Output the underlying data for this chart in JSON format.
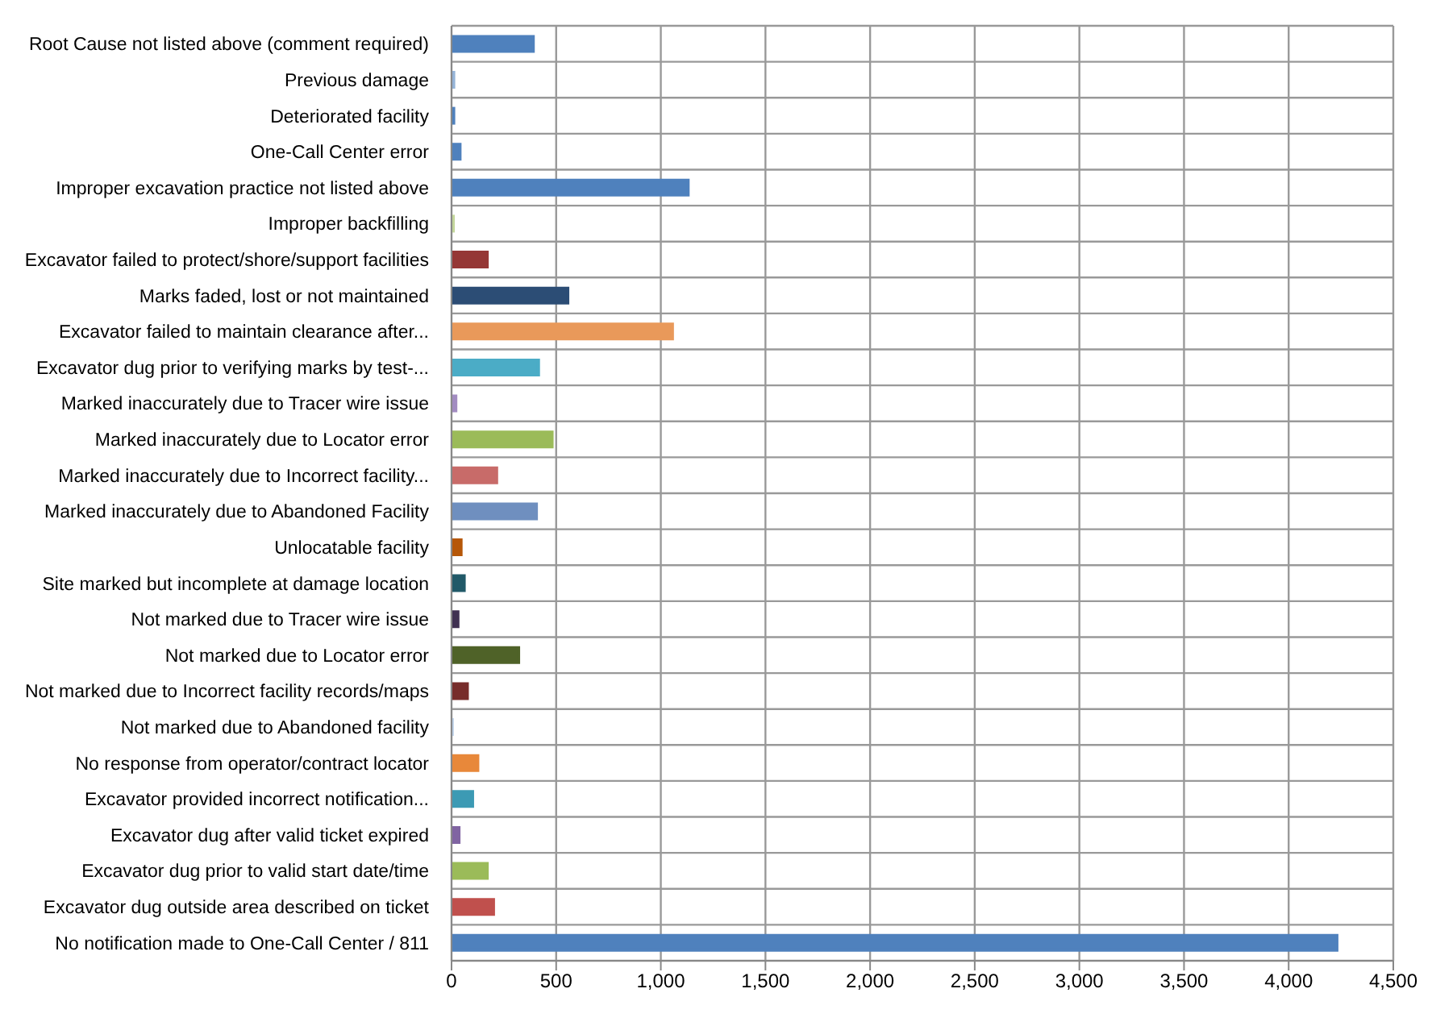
{
  "chart_data": {
    "type": "bar",
    "orientation": "horizontal",
    "categories": [
      "Root Cause not listed above (comment required)",
      "Previous damage",
      "Deteriorated facility",
      "One-Call Center error",
      "Improper excavation practice not listed above",
      "Improper backfilling",
      "Excavator failed to protect/shore/support facilities",
      "Marks faded, lost or not maintained",
      "Excavator failed to maintain clearance after...",
      "Excavator dug prior to verifying marks by test-...",
      "Marked inaccurately due to Tracer wire issue",
      "Marked inaccurately due to Locator error",
      "Marked inaccurately due to Incorrect facility...",
      "Marked inaccurately due to Abandoned Facility",
      "Unlocatable facility",
      "Site marked but incomplete at damage location",
      "Not marked due to Tracer wire issue",
      "Not marked due to Locator error",
      "Not marked due to Incorrect facility records/maps",
      "Not marked due to Abandoned facility",
      "No response from operator/contract locator",
      "Excavator provided incorrect notification...",
      "Excavator dug after valid ticket expired",
      "Excavator dug prior to valid start date/time",
      "Excavator dug outside area described on ticket",
      "No notification made to One-Call Center / 811"
    ],
    "values": [
      390,
      10,
      10,
      40,
      1130,
      8,
      170,
      555,
      1055,
      415,
      20,
      480,
      215,
      405,
      45,
      60,
      30,
      320,
      75,
      3,
      125,
      100,
      35,
      170,
      200,
      4230
    ],
    "colors": [
      "#4f81bd",
      "#95b3d7",
      "#4f81bd",
      "#4f81bd",
      "#4f81bd",
      "#c3d69b",
      "#953735",
      "#2c4d75",
      "#e9995a",
      "#4bacc6",
      "#a28cc1",
      "#9bbb59",
      "#c86b69",
      "#6f8fbf",
      "#b65708",
      "#215968",
      "#403152",
      "#4f6228",
      "#772c2a",
      "#b9cde5",
      "#e8883a",
      "#3c9ab4",
      "#8064a2",
      "#9bbb59",
      "#c0504d",
      "#4f81bd"
    ],
    "xlim": [
      0,
      4500
    ],
    "xticks": [
      0,
      500,
      {
        "value": 1000,
        "label": "1,000"
      },
      {
        "value": 1500,
        "label": "1,500"
      },
      {
        "value": 2000,
        "label": "2,000"
      },
      {
        "value": 2500,
        "label": "2,500"
      },
      {
        "value": 3000,
        "label": "3,000"
      },
      {
        "value": 3500,
        "label": "3,500"
      },
      {
        "value": 4000,
        "label": "4,000"
      },
      {
        "value": 4500,
        "label": "4,500"
      }
    ],
    "grid": true,
    "legend": false
  }
}
